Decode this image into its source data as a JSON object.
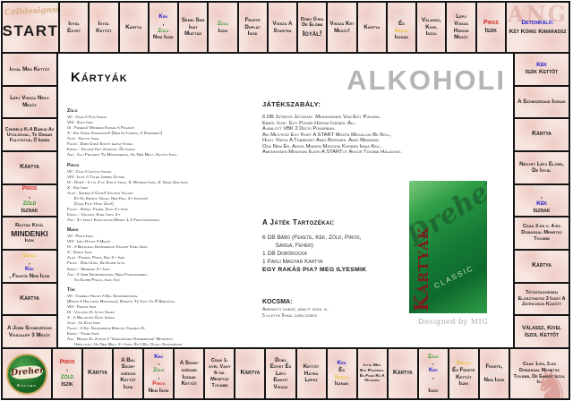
{
  "colors": {
    "kek": "#1717cd",
    "zold": "#2f9b2f",
    "piros": "#d42626",
    "sarga": "#e8c232",
    "feher": "#e2e2e2",
    "fekete": "#111111"
  },
  "corners": {
    "start": {
      "watermark": "Celldesignsite.hu",
      "label": "START"
    },
    "detox": {
      "watermark": "RANG",
      "segments": [
        {
          "t": "Detoxikáló:",
          "c": "kek"
        },
        {
          "t": "Két Körig Kimaradsz"
        }
      ]
    },
    "kocsma": {
      "brand": "Dreher",
      "label": "Kocsma"
    },
    "dice": {
      "fs": 5.3,
      "segments": [
        {
          "t": "Csak 1-es, 3-as Dobással Mehetsz Tovább, De Ennyit Iszol Is."
        }
      ]
    }
  },
  "top_cells": [
    {
      "segments": [
        {
          "t": "Igyál Egyet"
        }
      ]
    },
    {
      "segments": [
        {
          "t": "Igyál Kettőt"
        }
      ]
    },
    {
      "segments": [
        {
          "t": "Kártya"
        }
      ]
    },
    {
      "segments": [
        {
          "t": "Kék",
          "c": "kek"
        },
        {
          "t": ", "
        },
        {
          "t": "Zöld",
          "c": "zold"
        },
        {
          "t": " Nem Iszik"
        }
      ]
    },
    {
      "segments": [
        {
          "t": "Senki Sem Ihat Miattad"
        }
      ]
    },
    {
      "segments": [
        {
          "t": "Zöld",
          "c": "zold"
        },
        {
          "t": " Iszik"
        }
      ]
    },
    {
      "segments": [
        {
          "t": "Fekete Duplát Iszik"
        }
      ]
    },
    {
      "segments": [
        {
          "t": "Vissza A Startra"
        }
      ]
    },
    {
      "fs": 5.6,
      "segments": [
        {
          "t": "Dobj Újra De Előbb "
        },
        {
          "t": "Igyál!",
          "big": true
        }
      ]
    },
    {
      "segments": [
        {
          "t": "Vissza Két Mezőt!"
        }
      ]
    },
    {
      "segments": [
        {
          "t": "Kártya"
        }
      ]
    },
    {
      "segments": [
        {
          "t": "Fehér",
          "c": "feher"
        },
        {
          "t": " És "
        },
        {
          "t": "Sárga",
          "c": "sarga"
        },
        {
          "t": " Isznak"
        }
      ]
    },
    {
      "segments": [
        {
          "t": "Válassz, Kivel Iszol"
        }
      ]
    },
    {
      "segments": [
        {
          "t": "Lépj Vissza Három Mezőt"
        }
      ]
    },
    {
      "fs": 7,
      "segments": [
        {
          "t": "Piros",
          "c": "piros"
        },
        {
          "t": " Iszik"
        }
      ]
    }
  ],
  "right_cells": [
    {
      "fs": 6.8,
      "segments": [
        {
          "t": "Kék",
          "c": "kek"
        },
        {
          "t": " Iszik Kettőt"
        }
      ]
    },
    {
      "segments": [
        {
          "t": "A Szomszédaid Isznak"
        }
      ]
    },
    {
      "fs": 7,
      "segments": [
        {
          "t": "Kártya"
        }
      ]
    },
    {
      "segments": [
        {
          "t": "Négyet Lépj Előre, De Igyál"
        }
      ]
    },
    {
      "fs": 6.8,
      "segments": [
        {
          "t": "Fehér",
          "c": "feher"
        },
        {
          "t": ", "
        },
        {
          "t": "Kék",
          "c": "kek"
        },
        {
          "t": " Isznak"
        }
      ]
    },
    {
      "fs": 5.6,
      "segments": [
        {
          "t": "Csak 2-es v. 4-es Dobással Mehetsz Tovább"
        }
      ]
    },
    {
      "fs": 7,
      "segments": [
        {
          "t": "Kártya"
        }
      ]
    },
    {
      "fs": 5.3,
      "segments": [
        {
          "t": "Tetszőlegesen Eloszthatsz 3 Ivást A Játékosok Között"
        }
      ]
    },
    {
      "fs": 6.6,
      "segments": [
        {
          "t": "Válassz, Kivel Iszol Kettőt"
        }
      ]
    }
  ],
  "left_cells": [
    {
      "segments": [
        {
          "t": "Igyál Még Kettőt"
        }
      ]
    },
    {
      "segments": [
        {
          "t": "Lépj Vissza Négy Mezőt"
        }
      ]
    },
    {
      "fs": 5,
      "segments": [
        {
          "t": "Cseréld Ki A Bábud Az Utolsóval, Te Onnan Folytatod, Ő Innen"
        }
      ]
    },
    {
      "fs": 7,
      "segments": [
        {
          "t": "Kártya"
        }
      ]
    },
    {
      "fs": 6.8,
      "segments": [
        {
          "t": "Piros",
          "c": "piros"
        },
        {
          "t": ", "
        },
        {
          "t": "Zöld",
          "c": "zold"
        },
        {
          "t": " Isznak"
        }
      ]
    },
    {
      "fs": 5.6,
      "segments": [
        {
          "t": "Rajtad Kívül "
        },
        {
          "t": "MINDENKI",
          "big": true
        },
        {
          "t": " Iszik"
        }
      ]
    },
    {
      "segments": [
        {
          "t": "Sárga",
          "c": "sarga"
        },
        {
          "t": ", "
        },
        {
          "t": "Kék",
          "c": "kek"
        },
        {
          "t": ", Fekete Nem Iszik"
        }
      ]
    },
    {
      "fs": 7,
      "segments": [
        {
          "t": "Kártya"
        }
      ]
    },
    {
      "segments": [
        {
          "t": "A Jobb Szomszédod Visszalép 3 Mezőt"
        }
      ]
    }
  ],
  "bottom_cells": [
    {
      "fs": 6.8,
      "segments": [
        {
          "t": "Piros",
          "c": "piros"
        },
        {
          "t": ", "
        },
        {
          "t": "Zöld",
          "c": "zold"
        },
        {
          "t": " Iszik"
        }
      ]
    },
    {
      "fs": 7,
      "segments": [
        {
          "t": "Kártya"
        }
      ]
    },
    {
      "segments": [
        {
          "t": "A Bal Szom-szédod Kettőt Iszik"
        }
      ]
    },
    {
      "segments": [
        {
          "t": "Kék",
          "c": "kek"
        },
        {
          "t": ", "
        },
        {
          "t": "Zöld",
          "c": "zold"
        },
        {
          "t": ", "
        },
        {
          "t": "Piros",
          "c": "piros"
        },
        {
          "t": " Nem Iszik"
        }
      ]
    },
    {
      "segments": [
        {
          "t": "A Szom-szédaid Isznak Kettőt"
        }
      ]
    },
    {
      "fs": 5.6,
      "segments": [
        {
          "t": "Csak 1-gyel Vagy 6-tal Mehetsz Tovább"
        }
      ]
    },
    {
      "fs": 7,
      "segments": [
        {
          "t": "Kártya"
        }
      ]
    },
    {
      "segments": [
        {
          "t": "Dobj Egyet És Lépj Ennyit Vissza"
        }
      ]
    },
    {
      "segments": [
        {
          "t": "Kettőt Hátra Lépsz"
        }
      ]
    },
    {
      "segments": [
        {
          "t": "Kék",
          "c": "kek"
        },
        {
          "t": " És "
        },
        {
          "t": "Sárga",
          "c": "sarga"
        },
        {
          "t": " Isznak"
        }
      ]
    },
    {
      "fs": 4.8,
      "segments": [
        {
          "t": "Igyál Még Egy Pohárral És Fogd Rá A Nyuszira"
        }
      ]
    },
    {
      "fs": 7,
      "segments": [
        {
          "t": "Kártya"
        }
      ]
    },
    {
      "segments": [
        {
          "t": "Zöld",
          "c": "zold"
        },
        {
          "t": ", "
        },
        {
          "t": "Kék",
          "c": "kek"
        },
        {
          "t": ", "
        },
        {
          "t": "Fehér",
          "c": "feher"
        },
        {
          "t": " Iszik"
        }
      ]
    },
    {
      "segments": [
        {
          "t": "Sárga",
          "c": "sarga"
        },
        {
          "t": " És Fekete Kettőt Iszik"
        }
      ]
    },
    {
      "segments": [
        {
          "t": "Fekete, "
        },
        {
          "t": "Fehér",
          "c": "feher"
        },
        {
          "t": " Nem Iszik"
        }
      ]
    }
  ],
  "center": {
    "kartyak_title": "Kártyák",
    "sections": [
      {
        "label": "Zöld",
        "lines": [
          "VII : Csak A Fiúk Isznak",
          "VIII : Zöld Iszik",
          "IX : Fenékig! Mindenki Kiissza A Poharát",
          "X : Két Körig Kimaradsz!! (Nem Az Ivásból, A Dobásból!)",
          "Alsó : Kettőt Iszol",
          "Felső : Dobj Újra! Ennyit Lépsz Vissza",
          "Király : Válassz Két Játékost, Ők Isznak",
          "Ász : Állj Féllábon Tíz Másodpercig, Ha Nem Megy, Kettőt Iszol."
        ]
      },
      {
        "label": "Piros",
        "lines": [
          "VII : Csak A Lányok Isznak",
          "VIII : Igyál A Tőled Jobbra Ülővel",
          "IX : Dobj! - 1-től 4-ig: Ennyit Iszol, 5: Mindenki Iszik, 6: Senki Sem Iszik",
          "X : Kék Iszik",
          "Alsó : Szabad A Csók!! Válassz Valakit",
          "      És Ha Smárol Veled, Nem Kell 4-t Innotok!",
          "      (Csak Fiúk: Húzz Újat!)",
          "Felső : Sárga, Fehér, Zöld 2-t Iszik",
          "Király : Válassz, Kivel Iszol 2-t",
          "Ász : 3-t Iszol! Kiválthatod Mindet 1-1 Fekvőtámasszal"
        ]
      },
      {
        "label": "Makk",
        "lines": [
          "VII : Piros Iszik",
          "VIII : Lépj Hátra 3 Mezőt",
          "IX : A Baloldali Szomszédod Választ Kivel Iszol",
          "X : Sárga Iszik",
          "Alsó : Fekete, Piros, Kék 2-t Iszik",
          "Felső : Dobj Újra, De Előbb Igyál",
          "Király : Mindenki 2-t Iszik",
          "Ász : A Jobb Szomszédoddal Nézz Farkasszemet,",
          "      Aki Előbb Pislog, Iszik 4-et"
        ]
      },
      {
        "label": "Tök",
        "lines": [
          "VII : Cserélj Helyet A Bal Szomszédoddal",
          "(Bábuk A Helyükön Maradnak), Ezentúl Te Vagy Az Ő Bábujával",
          "VIII : Fekete Iszik",
          "IX : Válassz, Ki Igyon Veled",
          "X : A Melletted Ülők Isznak",
          "Alsó : Az Első Iszik",
          "Felső : A Két Szomszédod Bábuját Cseréld Ki",
          "Király : Fehér Iszik",
          "Ász : Mondd El 3-szor A \"Sárgabögre-Görbebögre\" Mondókát",
          "      Hibátlanul, Ha Nem Megy 2-t Iszol És A Bal Oldali Szomszédod",
          "      Próbálkozik, Ha Neki Sem Megy Ő Is 2-t Iszik És Így Tovább,",
          "      Amíg Körbe Nem Értek Vagy Valaki Hibátlanul El Nem Mondja."
        ]
      }
    ],
    "alkoholi": "ALKOHOLI",
    "szabaly_title": "Játékszabály:",
    "szabaly_lines": [
      "6 DB Játékos Játszhat. Mindenkinek Van Egy Pohara.",
      "Ebből Iszik. Egy Pohár Három Ivásból Áll.",
      "Ajánlott VBK 2 Decis Pohárban.",
      "Aki Megtesz Egy Kört A START Mezőn Megállva Be Kell,",
      "Hogy Várja A Többieket Amíg Beérnek. Amíg Mindenki",
      "Oda Nem Ér, Addig Minden Második Körben Innia Kell.",
      "Amennyiben Mindenki Eléri A STARTot Akkor Tovább Haladhat."
    ],
    "tartozek_title": "A Játék Tartozékai:",
    "tartozek_lines": [
      "6 DB Bábú (Fekete, Kék, Zöld, Piros,",
      "        Sárga, Fehér)",
      "1 DB Dobókocka",
      "1 Pakli Magyar Kártya"
    ],
    "tartozek_bold": "EGY RAKÁS PIA? MEG ILYESMIK",
    "kocsma_title": "Kocsma:",
    "kocsma_lines": [
      "Amennyit dobsz, annyit iszol is.",
      "5 illetve 6-nál újra dobsz"
    ],
    "card_label": "Kártyák",
    "card_brand": "Dreher",
    "card_sub": "Classic",
    "designed_by": "Designed by MIG"
  }
}
